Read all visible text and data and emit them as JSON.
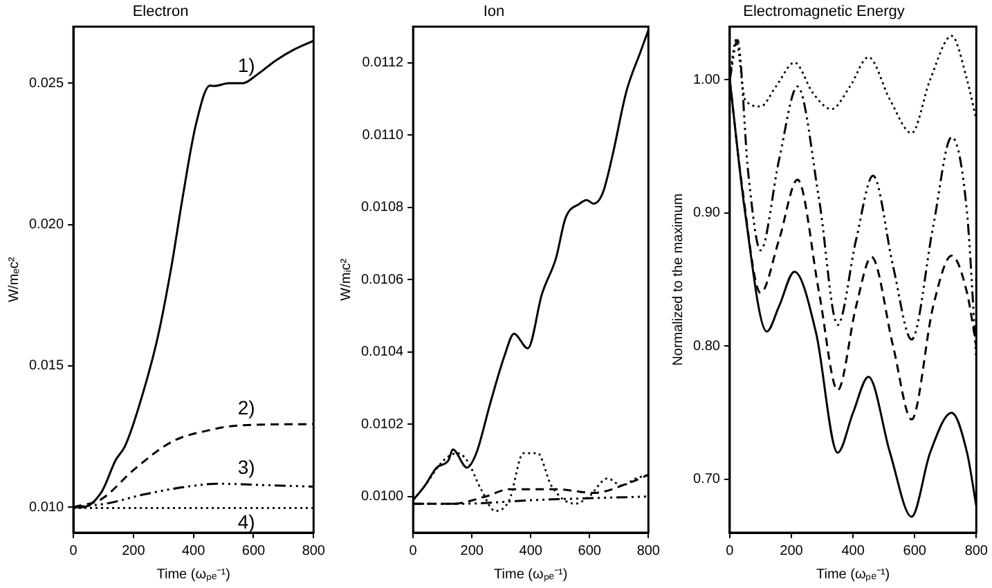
{
  "chart_data": [
    {
      "type": "line",
      "title": "Electron",
      "xlabel": "Time (ωₚₑ⁻¹)",
      "ylabel": "W/mₑc²",
      "xlim": [
        0,
        800
      ],
      "xticks": [
        0,
        200,
        400,
        600,
        800
      ],
      "ylim": [
        0.0091,
        0.027
      ],
      "yticks": [
        {
          "value": 0.01,
          "label": "0.010"
        },
        {
          "value": 0.015,
          "label": "0.015"
        },
        {
          "value": 0.02,
          "label": "0.020"
        },
        {
          "value": 0.025,
          "label": "0.025"
        }
      ],
      "grid": false,
      "legend": false,
      "series": [
        {
          "name": "1)",
          "color": "#000000",
          "line_style": "solid",
          "x": [
            0,
            30,
            94,
            141,
            172,
            220,
            282,
            329,
            361,
            408,
            455,
            470,
            518,
            565,
            612,
            674,
            737,
            800
          ],
          "values": [
            0.01,
            0.01,
            0.01054,
            0.01167,
            0.01216,
            0.01362,
            0.01606,
            0.01866,
            0.02077,
            0.02353,
            0.02491,
            0.0249,
            0.025,
            0.025,
            0.0253,
            0.0258,
            0.0262,
            0.0265
          ]
        },
        {
          "name": "2)",
          "color": "#000000",
          "line_style": "dashed",
          "x": [
            0,
            94,
            204,
            329,
            455,
            549,
            800
          ],
          "values": [
            0.01,
            0.01029,
            0.01135,
            0.01232,
            0.01273,
            0.01289,
            0.01294
          ]
        },
        {
          "name": "3)",
          "color": "#000000",
          "line_style": "dashdot",
          "x": [
            0,
            110,
            235,
            361,
            486,
            643,
            800
          ],
          "values": [
            0.01,
            0.01013,
            0.01045,
            0.0107,
            0.01083,
            0.01078,
            0.01073
          ]
        },
        {
          "name": "4)",
          "color": "#000000",
          "line_style": "dotted",
          "x": [
            0,
            400,
            800
          ],
          "values": [
            0.00997,
            0.00997,
            0.00997
          ]
        }
      ]
    },
    {
      "type": "line",
      "title": "Ion",
      "xlabel": "Time (ωₚₑ⁻¹)",
      "ylabel": "W/mᵢc²",
      "xlim": [
        0,
        800
      ],
      "xticks": [
        0,
        200,
        400,
        600,
        800
      ],
      "ylim": [
        0.0099,
        0.0113
      ],
      "yticks": [
        {
          "value": 0.01,
          "label": "0.0100"
        },
        {
          "value": 0.0102,
          "label": "0.0102"
        },
        {
          "value": 0.0104,
          "label": "0.0104"
        },
        {
          "value": 0.0106,
          "label": "0.0106"
        },
        {
          "value": 0.0108,
          "label": "0.0108"
        },
        {
          "value": 0.011,
          "label": "0.0110"
        },
        {
          "value": 0.0112,
          "label": "0.0112"
        }
      ],
      "grid": false,
      "legend": false,
      "series": [
        {
          "color": "#000000",
          "line_style": "solid",
          "x": [
            0,
            40,
            80,
            120,
            135,
            183,
            215,
            263,
            311,
            343,
            390,
            438,
            486,
            518,
            566,
            590,
            614,
            645,
            677,
            725,
            773,
            800
          ],
          "values": [
            0.00999,
            0.01003,
            0.01008,
            0.0101,
            0.01013,
            0.01008,
            0.01012,
            0.01026,
            0.01039,
            0.01045,
            0.01041,
            0.01056,
            0.01066,
            0.01077,
            0.01081,
            0.01082,
            0.01081,
            0.01084,
            0.01094,
            0.01112,
            0.01123,
            0.01129
          ]
        },
        {
          "color": "#000000",
          "line_style": "dotted",
          "x": [
            0,
            40,
            104,
            151,
            183,
            231,
            279,
            327,
            375,
            423,
            470,
            550,
            598,
            661,
            709,
            757,
            800
          ],
          "values": [
            0.00999,
            0.01003,
            0.0101,
            0.01012,
            0.0101,
            0.01002,
            0.00996,
            0.00999,
            0.01012,
            0.01012,
            0.01003,
            0.00998,
            0.01,
            0.01005,
            0.01003,
            0.01005,
            0.01006
          ]
        },
        {
          "color": "#000000",
          "line_style": "dashed",
          "x": [
            0,
            135,
            247,
            327,
            486,
            614,
            741,
            800
          ],
          "values": [
            0.00998,
            0.00998,
            0.01,
            0.01002,
            0.01002,
            0.01001,
            0.01004,
            0.01006
          ]
        },
        {
          "color": "#000000",
          "line_style": "dashdot",
          "x": [
            0,
            167,
            406,
            800
          ],
          "values": [
            0.00998,
            0.00998,
            0.00999,
            0.01
          ]
        }
      ]
    },
    {
      "type": "line",
      "title": "Electromagnetic Energy",
      "xlabel": "Time (ωₚₑ⁻¹)",
      "ylabel": "Normalized to the maximum",
      "xlim": [
        0,
        800
      ],
      "xticks": [
        0,
        200,
        400,
        600,
        800
      ],
      "ylim": [
        0.66,
        1.04
      ],
      "yticks": [
        {
          "value": 0.7,
          "label": "0.70"
        },
        {
          "value": 0.8,
          "label": "0.80"
        },
        {
          "value": 0.9,
          "label": "0.90"
        },
        {
          "value": 1,
          "label": "1.00"
        }
      ],
      "grid": false,
      "legend": false,
      "series": [
        {
          "color": "#000000",
          "line_style": "solid",
          "x": [
            0,
            50,
            120,
            160,
            210,
            280,
            350,
            400,
            450,
            520,
            590,
            650,
            720,
            770,
            800
          ],
          "values": [
            1.0,
            0.9,
            0.811,
            0.83,
            0.856,
            0.81,
            0.72,
            0.75,
            0.777,
            0.72,
            0.672,
            0.72,
            0.75,
            0.72,
            0.68
          ]
        },
        {
          "color": "#000000",
          "line_style": "dashed",
          "x": [
            0,
            40,
            100,
            160,
            220,
            290,
            350,
            410,
            460,
            530,
            590,
            660,
            720,
            770,
            800
          ],
          "values": [
            1.0,
            0.92,
            0.84,
            0.88,
            0.925,
            0.84,
            0.767,
            0.83,
            0.867,
            0.8,
            0.745,
            0.83,
            0.868,
            0.84,
            0.8
          ]
        },
        {
          "color": "#000000",
          "line_style": "dashdot",
          "x": [
            0,
            25,
            60,
            100,
            160,
            220,
            290,
            350,
            410,
            465,
            530,
            590,
            660,
            720,
            770,
            800
          ],
          "values": [
            1.0,
            1.03,
            0.93,
            0.872,
            0.94,
            0.995,
            0.91,
            0.816,
            0.88,
            0.928,
            0.86,
            0.805,
            0.89,
            0.957,
            0.9,
            0.79
          ]
        },
        {
          "color": "#000000",
          "line_style": "dotted",
          "x": [
            0,
            20,
            50,
            100,
            150,
            210,
            270,
            330,
            390,
            450,
            520,
            590,
            650,
            720,
            770,
            800
          ],
          "values": [
            1.0,
            1.03,
            0.985,
            0.98,
            0.995,
            1.013,
            0.99,
            0.978,
            0.995,
            1.017,
            0.985,
            0.96,
            1.0,
            1.033,
            1.0,
            0.97
          ]
        }
      ]
    }
  ]
}
